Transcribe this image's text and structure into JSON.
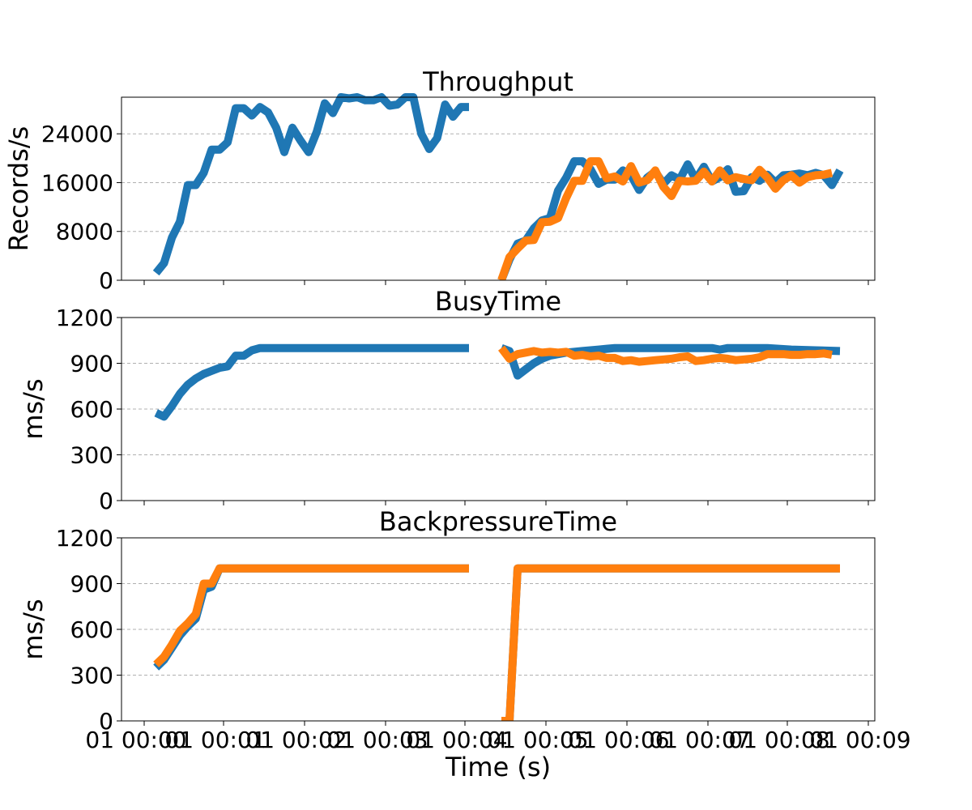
{
  "figure": {
    "xlabel": "Time (s)"
  },
  "x_tick_labels": [
    "01 00:00",
    "01 00:01",
    "01 00:02",
    "01 00:03",
    "01 00:04",
    "01 00:05",
    "01 00:06",
    "01 00:07",
    "01 00:08",
    "01 00:09"
  ],
  "x_tick_labels_overprint": [
    "01",
    "01",
    "01",
    "01",
    "01",
    "01",
    "01",
    "01",
    "01",
    "01"
  ],
  "colors": {
    "series1": "#1f77b4",
    "series2": "#ff7f0e",
    "grid": "#b0b0b0"
  },
  "chart_data": [
    {
      "type": "line",
      "title": "Throughput",
      "ylabel": "Records/s",
      "xlim": [
        0,
        9.07
      ],
      "ylim": [
        0,
        30000
      ],
      "yticks": [
        0,
        8000,
        16000,
        24000
      ],
      "grid": "y-dashed",
      "series": [
        {
          "x": [
            0.15,
            0.25,
            0.35,
            0.45,
            0.55,
            0.65,
            0.75,
            0.85,
            0.95,
            1.05,
            1.15,
            1.25,
            1.35,
            1.45,
            1.55,
            1.65,
            1.75,
            1.85,
            1.95,
            2.05,
            2.15,
            2.25,
            2.35,
            2.45,
            2.55,
            2.65,
            2.75,
            2.85,
            2.95,
            3.05,
            3.15,
            3.25,
            3.35,
            3.45,
            3.55,
            3.65,
            3.75,
            3.85,
            3.95,
            4.05,
            4.45,
            4.55,
            4.65,
            4.75,
            4.85,
            4.95,
            5.05,
            5.15,
            5.25,
            5.35,
            5.45,
            5.55,
            5.65,
            5.75,
            5.85,
            5.95,
            6.05,
            6.15,
            6.25,
            6.35,
            6.45,
            6.55,
            6.65,
            6.75,
            6.85,
            6.95,
            7.05,
            7.15,
            7.25,
            7.35,
            7.45,
            7.55,
            7.65,
            7.75,
            7.85,
            7.95,
            8.05,
            8.15,
            8.25,
            8.35,
            8.45,
            8.55,
            8.65
          ],
          "values": [
            1200,
            2800,
            7000,
            9600,
            15600,
            15600,
            17600,
            21400,
            21400,
            22600,
            28200,
            28200,
            27000,
            28400,
            27500,
            25000,
            21000,
            25000,
            22900,
            21000,
            24300,
            29000,
            27400,
            30000,
            29800,
            30000,
            29500,
            29500,
            30000,
            28600,
            28800,
            30000,
            30000,
            24000,
            21500,
            23300,
            28800,
            26800,
            28400,
            28400,
            26800,
            28400,
            28000,
            27100,
            28200,
            27800,
            28200,
            27400,
            0,
            3400,
            6000,
            6500,
            8500,
            9800,
            10200,
            14700,
            16800,
            19500,
            19500,
            18200,
            15800,
            16500,
            16500,
            18000,
            17200,
            14800,
            16800,
            17800,
            15800,
            17200,
            16500,
            19000,
            16500,
            18600,
            16200,
            16900,
            18200,
            14500,
            14600,
            16900,
            16300,
            17300,
            16000
          ],
          "values_comment": "",
          "x_segments_comment": ""
        }
      ]
    }
  ]
}
